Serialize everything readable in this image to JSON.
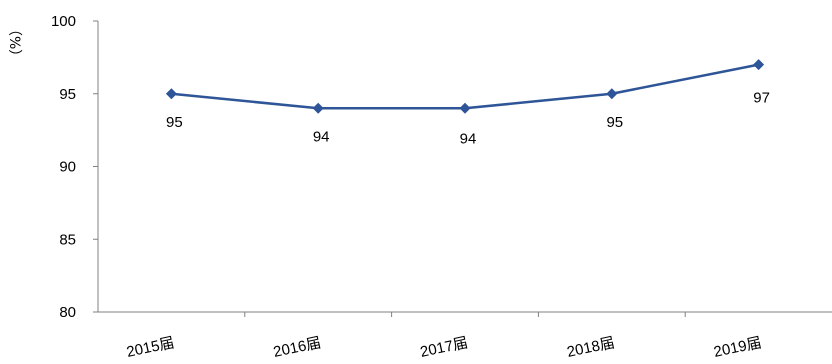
{
  "chart_data": {
    "type": "line",
    "categories": [
      "2015届",
      "2016届",
      "2017届",
      "2018届",
      "2019届"
    ],
    "series": [
      {
        "values": [
          95,
          94,
          94,
          95,
          97
        ]
      }
    ],
    "data_labels": [
      "95",
      "94",
      "94",
      "95",
      "97"
    ],
    "ylabel": "（%）",
    "ylim": [
      80,
      100
    ],
    "yticks": [
      80,
      85,
      90,
      95,
      100
    ],
    "ytick_labels": [
      "80",
      "85",
      "90",
      "95",
      "100"
    ],
    "grid": false,
    "legend": "none",
    "colors": {
      "line": "#2E5597",
      "marker": "#2E5597",
      "axis": "#808080"
    }
  }
}
